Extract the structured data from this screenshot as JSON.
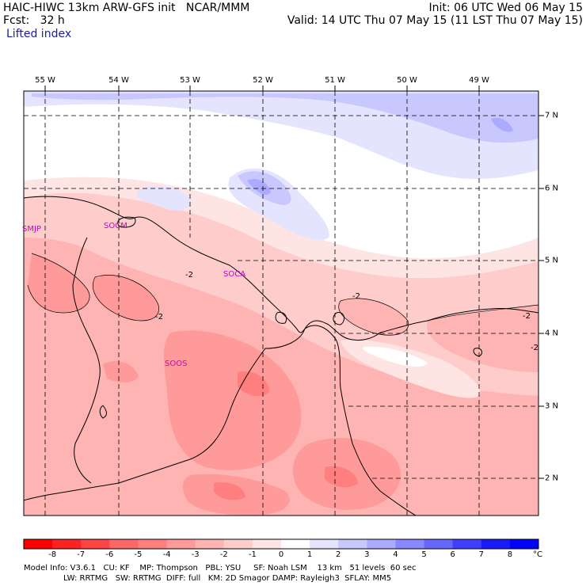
{
  "header": {
    "left_line1": "HAIC-HIWC 13km ARW-GFS init   NCAR/MMM",
    "left_line2": "Fcst:   32 h",
    "right_line1": "Init: 06 UTC Wed 06 May 15",
    "right_line2": "Valid: 14 UTC Thu 07 May 15 (11 LST Thu 07 May 15)",
    "field_name": "Lifted index"
  },
  "map": {
    "longitude_labels": [
      "55 W",
      "54 W",
      "53 W",
      "52 W",
      "51 W",
      "50 W",
      "49 W"
    ],
    "latitude_labels": [
      "7 N",
      "6 N",
      "5 N",
      "4 N",
      "3 N",
      "2 N"
    ],
    "stations": [
      "SMJP",
      "SOCM",
      "SOCA",
      "SOOS"
    ],
    "contour_labels": [
      "-2",
      "-2",
      "-2",
      "-2",
      "-2"
    ]
  },
  "colorbar": {
    "ticks": [
      "-8",
      "-7",
      "-6",
      "-5",
      "-4",
      "-3",
      "-2",
      "-1",
      "0",
      "1",
      "2",
      "3",
      "4",
      "5",
      "6",
      "7",
      "8"
    ],
    "unit": "°C",
    "colors": [
      "#ff0000",
      "#ff2222",
      "#ff4444",
      "#ff6666",
      "#ff7f7f",
      "#ff9a9a",
      "#ffb4b4",
      "#ffcccc",
      "#ffe4e4",
      "#ffffff",
      "#e4e4ff",
      "#c8c8ff",
      "#aaaaff",
      "#8888ff",
      "#6666ff",
      "#3f3fff",
      "#1a1aff",
      "#0000ff"
    ]
  },
  "footer": {
    "line1": "Model Info: V3.6.1   CU: KF    MP: Thompson   PBL: YSU     SF: Noah LSM    13 km   51 levels  60 sec",
    "line2": "LW: RRTMG   SW: RRTMG  DIFF: full   KM: 2D Smagor DAMP: Rayleigh3  SFLAY: MM5"
  }
}
